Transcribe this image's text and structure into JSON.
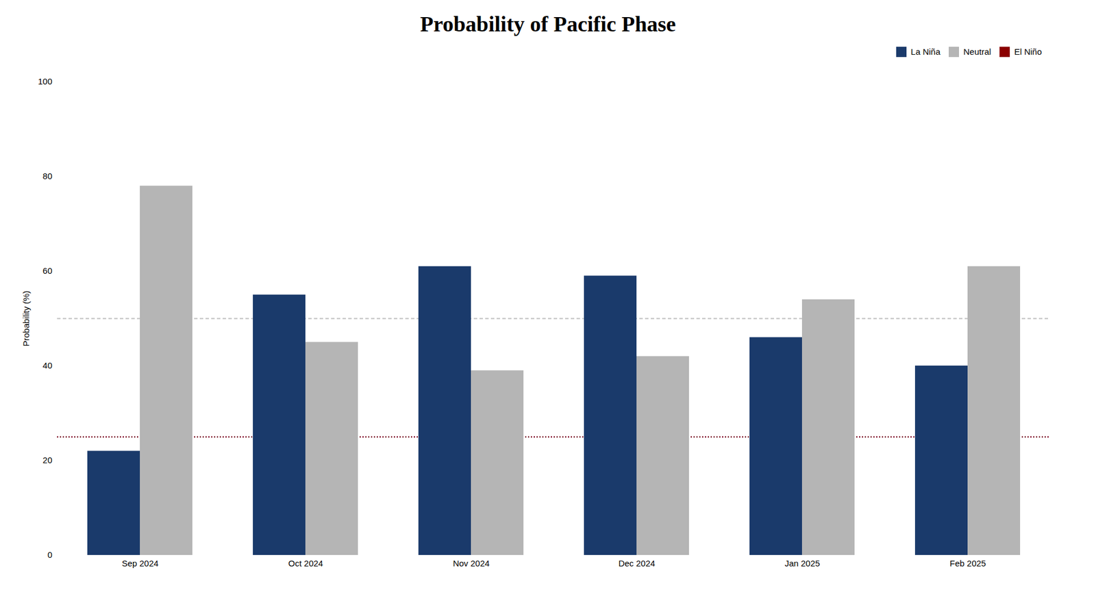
{
  "chart_data": {
    "type": "bar",
    "title": "Probability of Pacific Phase",
    "categories": [
      "Sep 2024",
      "Oct 2024",
      "Nov 2024",
      "Dec 2024",
      "Jan 2025",
      "Feb 2025"
    ],
    "series": [
      {
        "name": "La Niña",
        "color": "#1a3a6b",
        "values": [
          22,
          55,
          61,
          59,
          46,
          40
        ]
      },
      {
        "name": "Neutral",
        "color": "#b5b5b5",
        "values": [
          78,
          45,
          39,
          42,
          54,
          61
        ]
      },
      {
        "name": "El Niño",
        "color": "#8b0000",
        "values": [
          null,
          null,
          null,
          null,
          null,
          null
        ]
      }
    ],
    "ylabel": "Probability (%)",
    "ylim": [
      0,
      100
    ],
    "yticks": [
      0,
      20,
      40,
      60,
      80,
      100
    ],
    "grid": false,
    "legend": "upper right",
    "hlines": [
      {
        "value": 50,
        "color": "#c0c0c0",
        "line_style": "dashed"
      },
      {
        "value": 25,
        "color": "#7b0020",
        "line_style": "dotted"
      }
    ]
  }
}
